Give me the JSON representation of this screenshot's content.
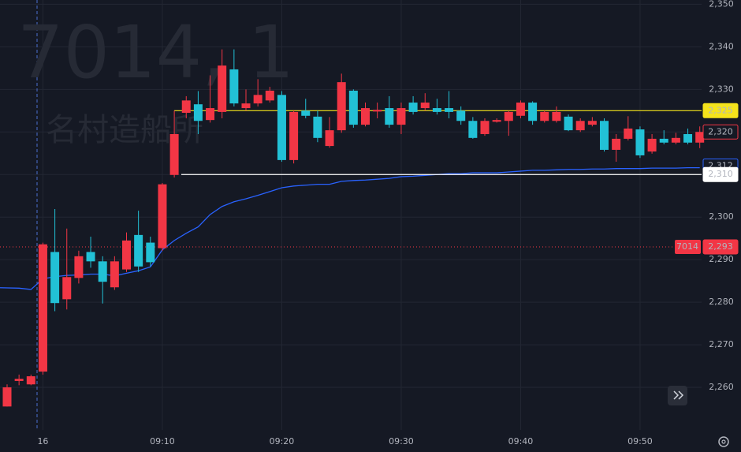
{
  "chart_data": {
    "type": "candlestick",
    "watermark": {
      "symbol": "7014, 1",
      "name": "名村造船所"
    },
    "categories": [
      null,
      null,
      null,
      "16",
      null,
      null,
      null,
      null,
      null,
      null,
      null,
      null,
      null,
      "09:10",
      null,
      null,
      null,
      null,
      null,
      null,
      null,
      null,
      null,
      "09:20",
      null,
      null,
      null,
      null,
      null,
      null,
      null,
      null,
      null,
      "09:30",
      null,
      null,
      null,
      null,
      null,
      null,
      null,
      null,
      null,
      "09:40",
      null,
      null,
      null,
      null,
      null,
      null,
      null,
      null,
      null,
      "09:50",
      null,
      null,
      null,
      null,
      null
    ],
    "open": [
      2255.5,
      2261.5,
      2260.7,
      2263.7,
      2291.8,
      2280.7,
      2285.7,
      2291.8,
      2289.6,
      2283.5,
      2287.7,
      2295.8,
      2294,
      2292.7,
      2309.9,
      2324.5,
      2326.5,
      2322.8,
      2324.7,
      2334.7,
      2325.6,
      2326.7,
      2327.4,
      2328.7,
      2313.4,
      2325,
      2323.6,
      2316.7,
      2320.4,
      2329.7,
      2321.7,
      2324.8,
      2325.6,
      2321.7,
      2326.9,
      2325.6,
      2325.6,
      2325.6,
      2325,
      2322.6,
      2319.5,
      2322.4,
      2322.6,
      2323.8,
      2326.9,
      2322.6,
      2322.6,
      2323.6,
      2320.4,
      2321.7,
      2322.6,
      2315.8,
      2318.4,
      2320.6,
      2315.4,
      2318.4,
      2317.5,
      2319.5,
      2317.5
    ],
    "high": [
      2260.7,
      2263,
      2263,
      2294,
      2301.9,
      2297.3,
      2292.1,
      2295.4,
      2290.8,
      2290.8,
      2296.4,
      2301.5,
      2295.4,
      2308,
      2325,
      2328.4,
      2329.6,
      2333.3,
      2339.4,
      2339.4,
      2330,
      2332.4,
      2330.6,
      2329.6,
      2325,
      2327.8,
      2325,
      2323.5,
      2333.7,
      2330,
      2326.9,
      2326.9,
      2328.4,
      2326.9,
      2328.4,
      2329.1,
      2327.8,
      2329.6,
      2326,
      2323.5,
      2323.2,
      2323.2,
      2325,
      2327.4,
      2327.2,
      2325,
      2326,
      2324.1,
      2323.2,
      2323.5,
      2323.2,
      2319.5,
      2323.7,
      2321.3,
      2319.5,
      2320.4,
      2319.8,
      2320.8,
      2321.3
    ],
    "low": [
      2255.5,
      2260.5,
      2260.5,
      2263,
      2277.9,
      2278.3,
      2284.4,
      2288.1,
      2279.7,
      2282.9,
      2287.1,
      2287.1,
      2288.4,
      2292.1,
      2309.3,
      2323.2,
      2319.5,
      2322.2,
      2323.2,
      2326,
      2325,
      2326,
      2326.9,
      2313,
      2312.6,
      2323.2,
      2317.6,
      2316.3,
      2319.8,
      2321,
      2321.3,
      2323.2,
      2321,
      2319.5,
      2324.1,
      2325,
      2324.1,
      2323.2,
      2321.7,
      2318.4,
      2319.1,
      2322.2,
      2319.1,
      2323.2,
      2321.7,
      2322.2,
      2322.2,
      2320.2,
      2320,
      2321.3,
      2315.4,
      2313,
      2318,
      2313.9,
      2314.9,
      2317.1,
      2317.1,
      2317.1,
      2316.2
    ],
    "close": [
      2260,
      2262,
      2262.6,
      2293.6,
      2279.8,
      2285.9,
      2290.8,
      2289.6,
      2284.8,
      2289.6,
      2294.5,
      2288.4,
      2289.4,
      2307.7,
      2319.5,
      2327.4,
      2322.6,
      2325.6,
      2335.6,
      2326.7,
      2326.7,
      2328.7,
      2329.7,
      2313.4,
      2324.7,
      2323.8,
      2318.6,
      2320.4,
      2331.7,
      2321.7,
      2325.6,
      2325.2,
      2321.7,
      2325.6,
      2324.7,
      2326.9,
      2324.7,
      2324.7,
      2322.6,
      2318.6,
      2322.6,
      2322.8,
      2324.7,
      2326.9,
      2322.6,
      2324.7,
      2324.7,
      2320.4,
      2322.6,
      2322.6,
      2315.8,
      2318.4,
      2320.8,
      2314.5,
      2318.4,
      2317.5,
      2318.6,
      2317.5,
      2320
    ],
    "up_color": "#f23645",
    "down_color": "#22c1d6",
    "line": {
      "color": "#2962ff",
      "values": [
        2283.4,
        2283.3,
        2283.0,
        2285.5,
        2286.0,
        2286.3,
        2286.4,
        2286.6,
        2286.6,
        2286.2,
        2286.8,
        2287.4,
        2288.3,
        2292.3,
        2294.5,
        2296.2,
        2297.7,
        2300.6,
        2302.5,
        2303.6,
        2304.3,
        2305.1,
        2306.0,
        2306.9,
        2307.3,
        2307.5,
        2307.7,
        2307.7,
        2308.4,
        2308.6,
        2308.7,
        2308.9,
        2309.1,
        2309.5,
        2309.6,
        2309.8,
        2310.0,
        2310.2,
        2310.2,
        2310.4,
        2310.4,
        2310.4,
        2310.6,
        2310.8,
        2311.0,
        2311.0,
        2311.1,
        2311.2,
        2311.2,
        2311.3,
        2311.3,
        2311.4,
        2311.4,
        2311.4,
        2311.5,
        2311.5,
        2311.5,
        2311.6,
        2311.6
      ]
    },
    "hlines": [
      {
        "value": 2325,
        "label": "2,325",
        "color": "#f5e31b"
      },
      {
        "value": 2310,
        "label": "2,310",
        "color": "#ffffff"
      }
    ],
    "price_markers": [
      {
        "value": 2320,
        "label": "2,320",
        "color": "#f23645"
      },
      {
        "value": 2312,
        "label": "2,312",
        "color": "#2962ff"
      }
    ],
    "current_price": {
      "symbol": "7014",
      "value": 2293,
      "label": "2,293",
      "color": "#f23645"
    },
    "ylim": [
      2250,
      2351
    ],
    "yticks": [
      {
        "value": 2260,
        "label": "2,260"
      },
      {
        "value": 2270,
        "label": "2,270"
      },
      {
        "value": 2280,
        "label": "2,280"
      },
      {
        "value": 2290,
        "label": "2,290"
      },
      {
        "value": 2300,
        "label": "2,300"
      },
      {
        "value": 2310,
        "label": "2,310"
      },
      {
        "value": 2320,
        "label": "2,320"
      },
      {
        "value": 2330,
        "label": "2,330"
      },
      {
        "value": 2340,
        "label": "2,340"
      },
      {
        "value": 2350,
        "label": "2,350"
      }
    ],
    "grid": true
  }
}
